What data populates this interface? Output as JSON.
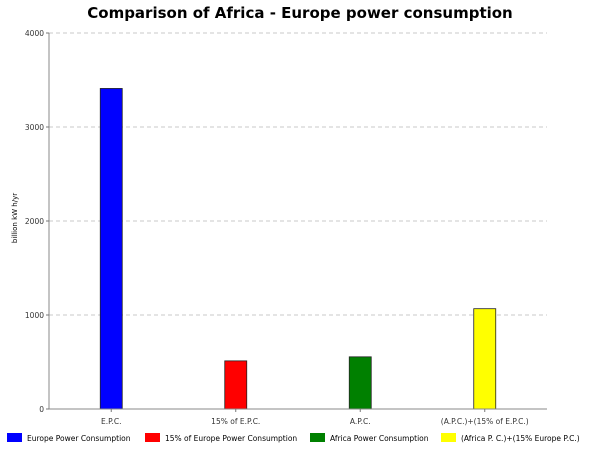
{
  "chart_data": {
    "type": "bar",
    "title": "Comparison of Africa - Europe power consumption",
    "xlabel": "",
    "ylabel": "billion kW h/yr",
    "ylim": [
      0,
      4000
    ],
    "yticks": [
      0,
      1000,
      2000,
      3000,
      4000
    ],
    "grid": true,
    "legend_position": "bottom",
    "categories": [
      "E.P.C.",
      "15% of E.P.C.",
      "A.P.C.",
      "(A.P.C.)+(15% of E.P.C.)"
    ],
    "series": [
      {
        "name": "Europe Power Consumption",
        "color": "#0000ff",
        "values": [
          3410,
          null,
          null,
          null
        ]
      },
      {
        "name": "15% of Europe Power Consumption",
        "color": "#ff0000",
        "values": [
          null,
          512,
          null,
          null
        ]
      },
      {
        "name": "Africa Power Consumption",
        "color": "#008000",
        "values": [
          null,
          null,
          555,
          null
        ]
      },
      {
        "name": "(Africa P. C.)+(15% Europe P.C.)",
        "color": "#ffff00",
        "values": [
          null,
          null,
          null,
          1067
        ]
      }
    ]
  }
}
